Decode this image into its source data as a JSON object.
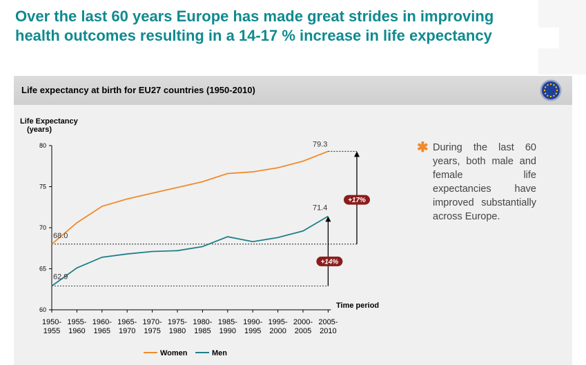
{
  "headline": "Over the last 60 years Europe has made great strides in improving health outcomes resulting in a 14-17 % increase in life expectancy",
  "panel_title": "Life expectancy at birth for EU27 countries (1950-2010)",
  "bullet": "During the last 60 years, both male and female life expectancies have improved substantially across Europe.",
  "colors": {
    "women": "#f08a2b",
    "men": "#1e7f88",
    "headline": "#0f8a8f",
    "badge": "#8b1c1c",
    "flag": "#1f3f99",
    "star": "#f2c40f"
  },
  "icons": {
    "flag": "eu-flag-icon",
    "bullet": "asterisk-icon"
  },
  "chart_data": {
    "type": "line",
    "ylabel": "Life Expectancy (years)",
    "xlabel": "Time period",
    "ylim": [
      60,
      80
    ],
    "yticks": [
      60,
      65,
      70,
      75,
      80
    ],
    "categories": [
      "1950-1955",
      "1955-1960",
      "1960-1965",
      "1965-1970",
      "1970-1975",
      "1975-1980",
      "1980-1985",
      "1985-1990",
      "1990-1995",
      "1995-2000",
      "2000-2005",
      "2005-2010"
    ],
    "series": [
      {
        "name": "Women",
        "values": [
          68.0,
          70.6,
          72.6,
          73.5,
          74.2,
          74.9,
          75.6,
          76.6,
          76.8,
          77.3,
          78.1,
          79.3
        ]
      },
      {
        "name": "Men",
        "values": [
          62.9,
          65.1,
          66.4,
          66.8,
          67.1,
          67.2,
          67.7,
          68.9,
          68.3,
          68.8,
          69.6,
          71.4
        ]
      }
    ],
    "data_labels": [
      "68.0",
      "79.3",
      "62.9",
      "71.4"
    ],
    "annotations": [
      "+17%",
      "+14%"
    ],
    "legend": {
      "position": "bottom",
      "entries": [
        "Women",
        "Men"
      ]
    },
    "grid": false
  }
}
